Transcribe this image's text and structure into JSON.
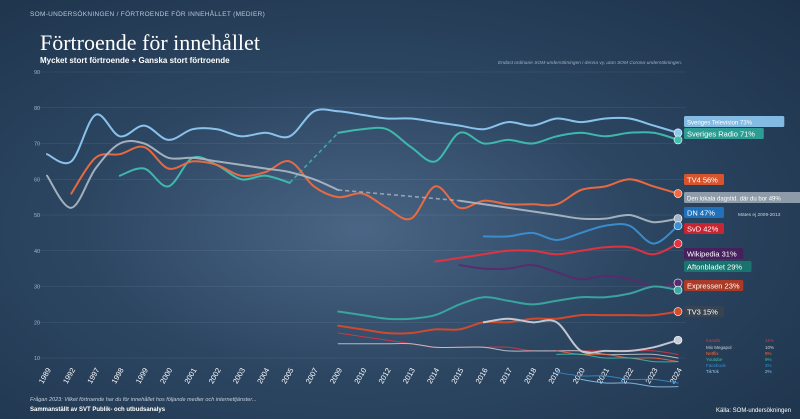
{
  "breadcrumb": "SOM-UNDERSÖKNINGEN / FÖRTROENDE FÖR INNEHÅLLET (MEDIER)",
  "footnote": "Frågan 2023: Vilket förtroende har du för innehållet hos följande medier och internettjänster...",
  "credit": "Sammanställt av SVT Publik- och utbudsanalys",
  "chart_data": {
    "type": "line",
    "title": "Förtroende för innehållet",
    "subtitle": "Mycket stort förtroende + Ganska stort förtroende",
    "method_note": "Endast ordinarie SOM-undersökningen i denna vy, utan SOM Corona-undersökningen.",
    "source": "Källa: SOM-undersökningen",
    "ylim": [
      10,
      90
    ],
    "yticks": [
      10,
      20,
      30,
      40,
      50,
      60,
      70,
      80,
      90
    ],
    "categories": [
      "1989",
      "1992",
      "1997",
      "1998",
      "1999",
      "2000",
      "2001",
      "2002",
      "2003",
      "2004",
      "2005",
      "2007",
      "2009",
      "2010",
      "2012",
      "2013",
      "2014",
      "2015",
      "2016",
      "2017",
      "2018",
      "2019",
      "2020",
      "2021",
      "2022",
      "2023",
      "2024"
    ],
    "annotation": "Mätes ej 2009-2013",
    "series": [
      {
        "name": "Sveriges Television",
        "label": "Sveriges Television 73%",
        "color": "#8ec9f2",
        "label_bg": "#8ec9f2",
        "label_fg": "#ffffff",
        "values": [
          67,
          65,
          78,
          72,
          75,
          71,
          74,
          74,
          72,
          73,
          72,
          79,
          79,
          78,
          77,
          77,
          76,
          75,
          74,
          76,
          75,
          77,
          76,
          77,
          77,
          75,
          73
        ]
      },
      {
        "name": "Sveriges Radio",
        "label": "Sveriges Radio 71%",
        "color": "#3fbfb0",
        "label_bg": "#2fa79a",
        "label_fg": "#ffffff",
        "values": [
          null,
          null,
          null,
          61,
          63,
          58,
          66,
          64,
          60,
          61,
          59,
          null,
          73,
          74,
          74,
          69,
          65,
          73,
          70,
          71,
          70,
          72,
          73,
          72,
          73,
          73,
          71
        ]
      },
      {
        "name": "TV4",
        "label": "TV4 56%",
        "color": "#f26a3d",
        "label_bg": "#e9582a",
        "label_fg": "#ffffff",
        "values": [
          null,
          56,
          66,
          67,
          69,
          63,
          65,
          64,
          61,
          62,
          65,
          58,
          55,
          56,
          52,
          49,
          58,
          52,
          54,
          53,
          53,
          53,
          57,
          58,
          60,
          58,
          56
        ]
      },
      {
        "name": "Den lokala dagstid. där du bor",
        "label": "Den lokala dagstid. där du bor 49%",
        "color": "#a9b5c2",
        "label_bg": "#9aa6b3",
        "label_fg": "#ffffff",
        "values": [
          61,
          52,
          63,
          70,
          70,
          66,
          66,
          65,
          64,
          63,
          62,
          60,
          57,
          null,
          null,
          null,
          null,
          54,
          53,
          52,
          51,
          50,
          49,
          49,
          50,
          48,
          49
        ]
      },
      {
        "name": "DN",
        "label": "DN 47%",
        "color": "#3a8fd1",
        "label_bg": "#1f77c4",
        "label_fg": "#ffffff",
        "values": [
          null,
          null,
          null,
          null,
          null,
          null,
          null,
          null,
          null,
          null,
          null,
          null,
          null,
          null,
          null,
          null,
          null,
          null,
          44,
          44,
          45,
          43,
          45,
          47,
          47,
          42,
          47
        ]
      },
      {
        "name": "SvD",
        "label": "SvD 42%",
        "color": "#e8323f",
        "label_bg": "#d9212e",
        "label_fg": "#ffffff",
        "values": [
          null,
          null,
          null,
          null,
          null,
          null,
          null,
          null,
          null,
          null,
          null,
          null,
          null,
          null,
          null,
          null,
          37,
          38,
          39,
          40,
          40,
          39,
          40,
          41,
          41,
          39,
          42
        ]
      },
      {
        "name": "Wikipedia",
        "label": "Wikipedia 31%",
        "color": "#5a2a6e",
        "label_bg": "#4a1d5e",
        "label_fg": "#ffffff",
        "values": [
          null,
          null,
          null,
          null,
          null,
          null,
          null,
          null,
          null,
          null,
          null,
          null,
          null,
          null,
          null,
          null,
          null,
          36,
          35,
          35,
          36,
          34,
          32,
          33,
          32,
          30,
          31
        ]
      },
      {
        "name": "Aftonbladet",
        "label": "Aftonbladet 29%",
        "color": "#3aa9a1",
        "label_bg": "#187a72",
        "label_fg": "#ffffff",
        "values": [
          null,
          null,
          null,
          null,
          null,
          null,
          null,
          null,
          null,
          null,
          null,
          null,
          23,
          22,
          21,
          21,
          22,
          25,
          27,
          26,
          25,
          26,
          27,
          27,
          28,
          30,
          29
        ]
      },
      {
        "name": "Expressen",
        "label": "Expressen 23%",
        "color": "#d94a2a",
        "label_bg": "#b93a20",
        "label_fg": "#ffffff",
        "values": [
          null,
          null,
          null,
          null,
          null,
          null,
          null,
          null,
          null,
          null,
          null,
          null,
          19,
          18,
          17,
          17,
          18,
          18,
          20,
          20,
          21,
          21,
          22,
          22,
          22,
          22,
          23
        ]
      },
      {
        "name": "TV3",
        "label": "TV3 15%",
        "color": "#c9cfd6",
        "label_bg": "#3b4450",
        "label_fg": "#ffffff",
        "values": [
          null,
          null,
          null,
          null,
          null,
          null,
          null,
          null,
          null,
          null,
          null,
          null,
          null,
          null,
          null,
          null,
          null,
          null,
          20,
          21,
          20,
          20,
          12,
          12,
          12,
          13,
          15
        ]
      }
    ],
    "minor_series": [
      {
        "name": "Kanal5",
        "pct": "11%",
        "color": "#e8323f",
        "values": [
          null,
          null,
          null,
          null,
          null,
          null,
          null,
          null,
          null,
          null,
          null,
          null,
          17,
          16,
          15,
          14,
          13,
          13,
          13,
          13,
          12,
          12,
          12,
          12,
          12,
          12,
          11
        ]
      },
      {
        "name": "Mix Megapol",
        "pct": "10%",
        "color": "#c9cfd6",
        "values": [
          null,
          null,
          null,
          null,
          null,
          null,
          null,
          null,
          null,
          null,
          null,
          null,
          14,
          14,
          14,
          14,
          13,
          13,
          13,
          12,
          12,
          12,
          12,
          11,
          11,
          11,
          10
        ]
      },
      {
        "name": "Netflix",
        "pct": "9%",
        "color": "#f26a3d",
        "values": [
          null,
          null,
          null,
          null,
          null,
          null,
          null,
          null,
          null,
          null,
          null,
          null,
          null,
          null,
          null,
          null,
          null,
          null,
          null,
          null,
          null,
          12,
          11,
          11,
          10,
          10,
          9
        ]
      },
      {
        "name": "Youtube",
        "pct": "9%",
        "color": "#3fbfb0",
        "values": [
          null,
          null,
          null,
          null,
          null,
          null,
          null,
          null,
          null,
          null,
          null,
          null,
          null,
          null,
          null,
          null,
          null,
          null,
          null,
          null,
          null,
          11,
          11,
          10,
          10,
          9,
          9
        ]
      },
      {
        "name": "Facebook",
        "pct": "3%",
        "color": "#3a8fd1",
        "values": [
          null,
          null,
          null,
          null,
          null,
          null,
          null,
          null,
          null,
          null,
          null,
          null,
          null,
          null,
          null,
          null,
          null,
          null,
          null,
          null,
          null,
          6,
          5,
          5,
          4,
          4,
          3
        ]
      },
      {
        "name": "TikTok",
        "pct": "2%",
        "color": "#8ec9f2",
        "values": [
          null,
          null,
          null,
          null,
          null,
          null,
          null,
          null,
          null,
          null,
          null,
          null,
          null,
          null,
          null,
          null,
          null,
          null,
          null,
          null,
          null,
          null,
          4,
          3,
          3,
          2,
          2
        ]
      }
    ]
  }
}
